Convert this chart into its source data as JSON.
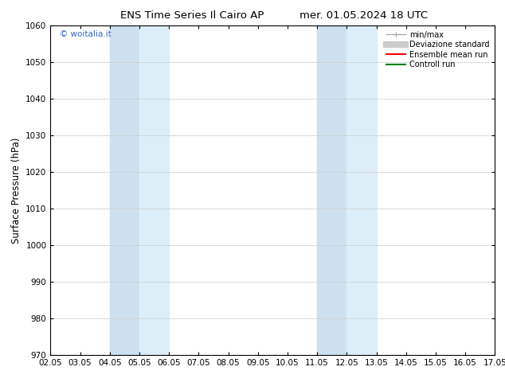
{
  "title_left": "ENS Time Series Il Cairo AP",
  "title_right": "mer. 01.05.2024 18 UTC",
  "ylabel": "Surface Pressure (hPa)",
  "ylim": [
    970,
    1060
  ],
  "yticks": [
    970,
    980,
    990,
    1000,
    1010,
    1020,
    1030,
    1040,
    1050,
    1060
  ],
  "xtick_labels": [
    "02.05",
    "03.05",
    "04.05",
    "05.05",
    "06.05",
    "07.05",
    "08.05",
    "09.05",
    "10.05",
    "11.05",
    "12.05",
    "13.05",
    "14.05",
    "15.05",
    "16.05",
    "17.05"
  ],
  "xtick_positions": [
    0,
    1,
    2,
    3,
    4,
    5,
    6,
    7,
    8,
    9,
    10,
    11,
    12,
    13,
    14,
    15
  ],
  "shaded_bands": [
    {
      "x_start": 2,
      "x_end": 3,
      "color": "#cce0f0"
    },
    {
      "x_start": 3,
      "x_end": 4,
      "color": "#ddeef8"
    },
    {
      "x_start": 9,
      "x_end": 10,
      "color": "#cce0f0"
    },
    {
      "x_start": 10,
      "x_end": 11,
      "color": "#ddeef8"
    }
  ],
  "watermark_text": "© woitalia.it",
  "watermark_color": "#3366cc",
  "legend_entries": [
    {
      "label": "min/max",
      "color": "#aaaaaa",
      "lw": 1.0
    },
    {
      "label": "Deviazione standard",
      "color": "#cccccc",
      "lw": 6
    },
    {
      "label": "Ensemble mean run",
      "color": "#ff0000",
      "lw": 1.5
    },
    {
      "label": "Controll run",
      "color": "#008000",
      "lw": 1.5
    }
  ],
  "bg_color": "#ffffff",
  "grid_color": "#cccccc",
  "spine_color": "#000000",
  "title_fontsize": 9.5,
  "tick_fontsize": 7.5,
  "ylabel_fontsize": 8.5,
  "fig_width": 6.34,
  "fig_height": 4.9,
  "dpi": 100
}
